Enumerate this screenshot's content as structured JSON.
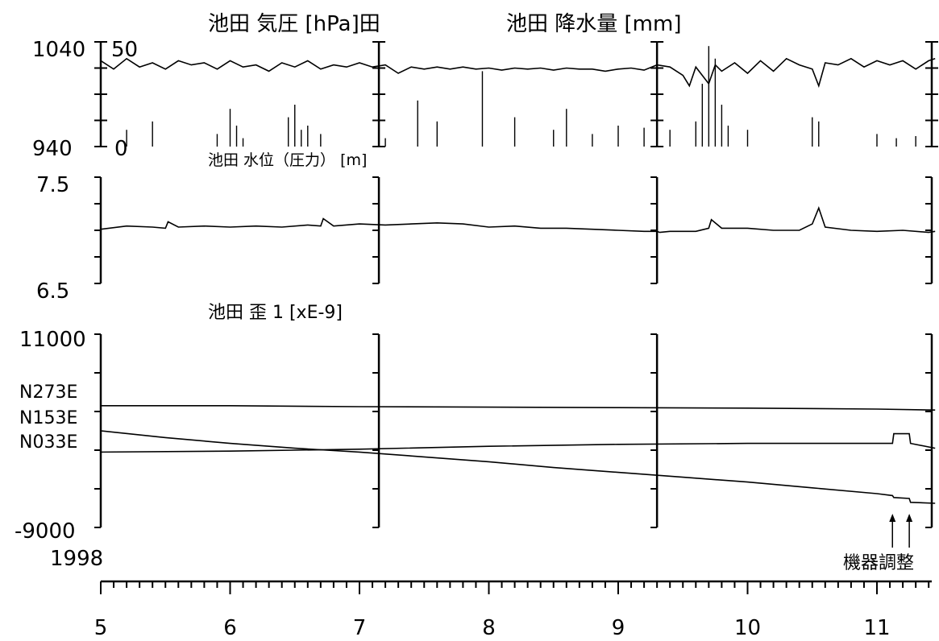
{
  "chart_data": [
    {
      "type": "line",
      "title": "池田 気圧 [hPa]田",
      "ylim": [
        940,
        1040
      ],
      "ytick_labels": [
        "940",
        "1040"
      ],
      "xlim": [
        5.0,
        11.45
      ],
      "series": [
        {
          "x": [
            5.0,
            5.1,
            5.2,
            5.3,
            5.4,
            5.5,
            5.6,
            5.7,
            5.8,
            5.9,
            6.0,
            6.1,
            6.2,
            6.3,
            6.4,
            6.5,
            6.6,
            6.7,
            6.8,
            6.9,
            7.0,
            7.1,
            7.2,
            7.3,
            7.4,
            7.5,
            7.6,
            7.7,
            7.8,
            7.9,
            8.0,
            8.1,
            8.2,
            8.3,
            8.4,
            8.5,
            8.6,
            8.7,
            8.8,
            8.9,
            9.0,
            9.1,
            9.2,
            9.3,
            9.4,
            9.5,
            9.55,
            9.6,
            9.7,
            9.75,
            9.8,
            9.9,
            10.0,
            10.1,
            10.2,
            10.3,
            10.4,
            10.5,
            10.55,
            10.6,
            10.7,
            10.8,
            10.9,
            11.0,
            11.1,
            11.2,
            11.3,
            11.4,
            11.45
          ],
          "values": [
            1022,
            1014,
            1024,
            1016,
            1020,
            1014,
            1022,
            1018,
            1020,
            1014,
            1022,
            1016,
            1018,
            1012,
            1020,
            1016,
            1022,
            1014,
            1018,
            1016,
            1020,
            1016,
            1018,
            1010,
            1016,
            1014,
            1016,
            1014,
            1016,
            1014,
            1015,
            1013,
            1015,
            1014,
            1015,
            1013,
            1015,
            1014,
            1014,
            1012,
            1014,
            1015,
            1013,
            1018,
            1016,
            1008,
            998,
            1016,
            1000,
            1018,
            1012,
            1020,
            1010,
            1022,
            1012,
            1024,
            1018,
            1014,
            998,
            1020,
            1018,
            1024,
            1016,
            1022,
            1018,
            1022,
            1014,
            1022,
            1024
          ]
        }
      ]
    },
    {
      "type": "bar",
      "title": "池田 降水量 [mm]",
      "ylim": [
        0,
        50
      ],
      "ytick_labels": [
        "0",
        "50"
      ],
      "x": [
        5.2,
        5.4,
        5.9,
        6.0,
        6.05,
        6.1,
        6.45,
        6.5,
        6.55,
        6.6,
        6.7,
        7.15,
        7.2,
        7.45,
        7.6,
        7.95,
        8.2,
        8.5,
        8.6,
        8.8,
        9.0,
        9.2,
        9.4,
        9.6,
        9.65,
        9.7,
        9.75,
        9.8,
        9.85,
        10.0,
        10.5,
        10.55,
        11.0,
        11.15,
        11.3
      ],
      "values": [
        8,
        12,
        6,
        18,
        10,
        4,
        14,
        20,
        8,
        10,
        6,
        7,
        4,
        22,
        12,
        36,
        14,
        8,
        18,
        6,
        10,
        9,
        8,
        12,
        30,
        48,
        42,
        20,
        10,
        8,
        14,
        12,
        6,
        4,
        5
      ]
    },
    {
      "type": "line",
      "title": "池田 水位（圧力） [m]",
      "ylim": [
        6.5,
        7.5
      ],
      "ytick_labels": [
        "6.5",
        "7.5"
      ],
      "series": [
        {
          "x": [
            5.0,
            5.2,
            5.4,
            5.5,
            5.52,
            5.6,
            5.8,
            6.0,
            6.2,
            6.4,
            6.6,
            6.7,
            6.72,
            6.8,
            7.0,
            7.2,
            7.4,
            7.6,
            7.8,
            8.0,
            8.2,
            8.4,
            8.6,
            8.8,
            9.0,
            9.2,
            9.3,
            9.32,
            9.4,
            9.6,
            9.7,
            9.72,
            9.8,
            10.0,
            10.2,
            10.4,
            10.5,
            10.55,
            10.6,
            10.8,
            11.0,
            11.2,
            11.4,
            11.45
          ],
          "values": [
            7.01,
            7.04,
            7.03,
            7.02,
            7.08,
            7.03,
            7.04,
            7.03,
            7.04,
            7.03,
            7.05,
            7.04,
            7.11,
            7.04,
            7.06,
            7.05,
            7.06,
            7.07,
            7.06,
            7.03,
            7.04,
            7.02,
            7.02,
            7.01,
            7.0,
            6.99,
            6.99,
            6.98,
            6.99,
            6.99,
            7.02,
            7.1,
            7.02,
            7.02,
            7.0,
            7.0,
            7.06,
            7.21,
            7.03,
            7.0,
            6.99,
            7.0,
            6.98,
            6.99
          ]
        }
      ]
    },
    {
      "type": "line",
      "title": "池田 歪 1 [xE-9]",
      "ylim": [
        -9000,
        11000
      ],
      "ytick_labels": [
        "-9000",
        "11000"
      ],
      "year_label": "1998",
      "xtick_labels": [
        "5",
        "6",
        "7",
        "8",
        "9",
        "10",
        "11"
      ],
      "series": [
        {
          "name": "N273E",
          "x": [
            5.0,
            6.0,
            7.0,
            8.0,
            9.0,
            10.0,
            11.0,
            11.45
          ],
          "values": [
            3600,
            3600,
            3500,
            3450,
            3400,
            3350,
            3250,
            3150
          ]
        },
        {
          "name": "N153E",
          "x": [
            5.0,
            5.5,
            6.0,
            6.5,
            7.0,
            7.5,
            8.0,
            8.5,
            9.0,
            9.5,
            10.0,
            10.5,
            11.0,
            11.12,
            11.13,
            11.25,
            11.26,
            11.45
          ],
          "values": [
            1000,
            300,
            -300,
            -800,
            -1200,
            -1700,
            -2200,
            -2800,
            -3300,
            -3800,
            -4300,
            -4900,
            -5500,
            -5700,
            -5900,
            -6000,
            -6400,
            -6500
          ]
        },
        {
          "name": "N033E",
          "x": [
            5.0,
            6.0,
            7.0,
            8.0,
            9.0,
            10.0,
            11.0,
            11.12,
            11.13,
            11.25,
            11.26,
            11.45
          ],
          "values": [
            -1200,
            -1100,
            -900,
            -600,
            -400,
            -300,
            -300,
            -300,
            700,
            700,
            -300,
            -800
          ]
        }
      ],
      "annotation": {
        "text": "機器調整",
        "x": [
          11.12,
          11.25
        ]
      }
    }
  ]
}
